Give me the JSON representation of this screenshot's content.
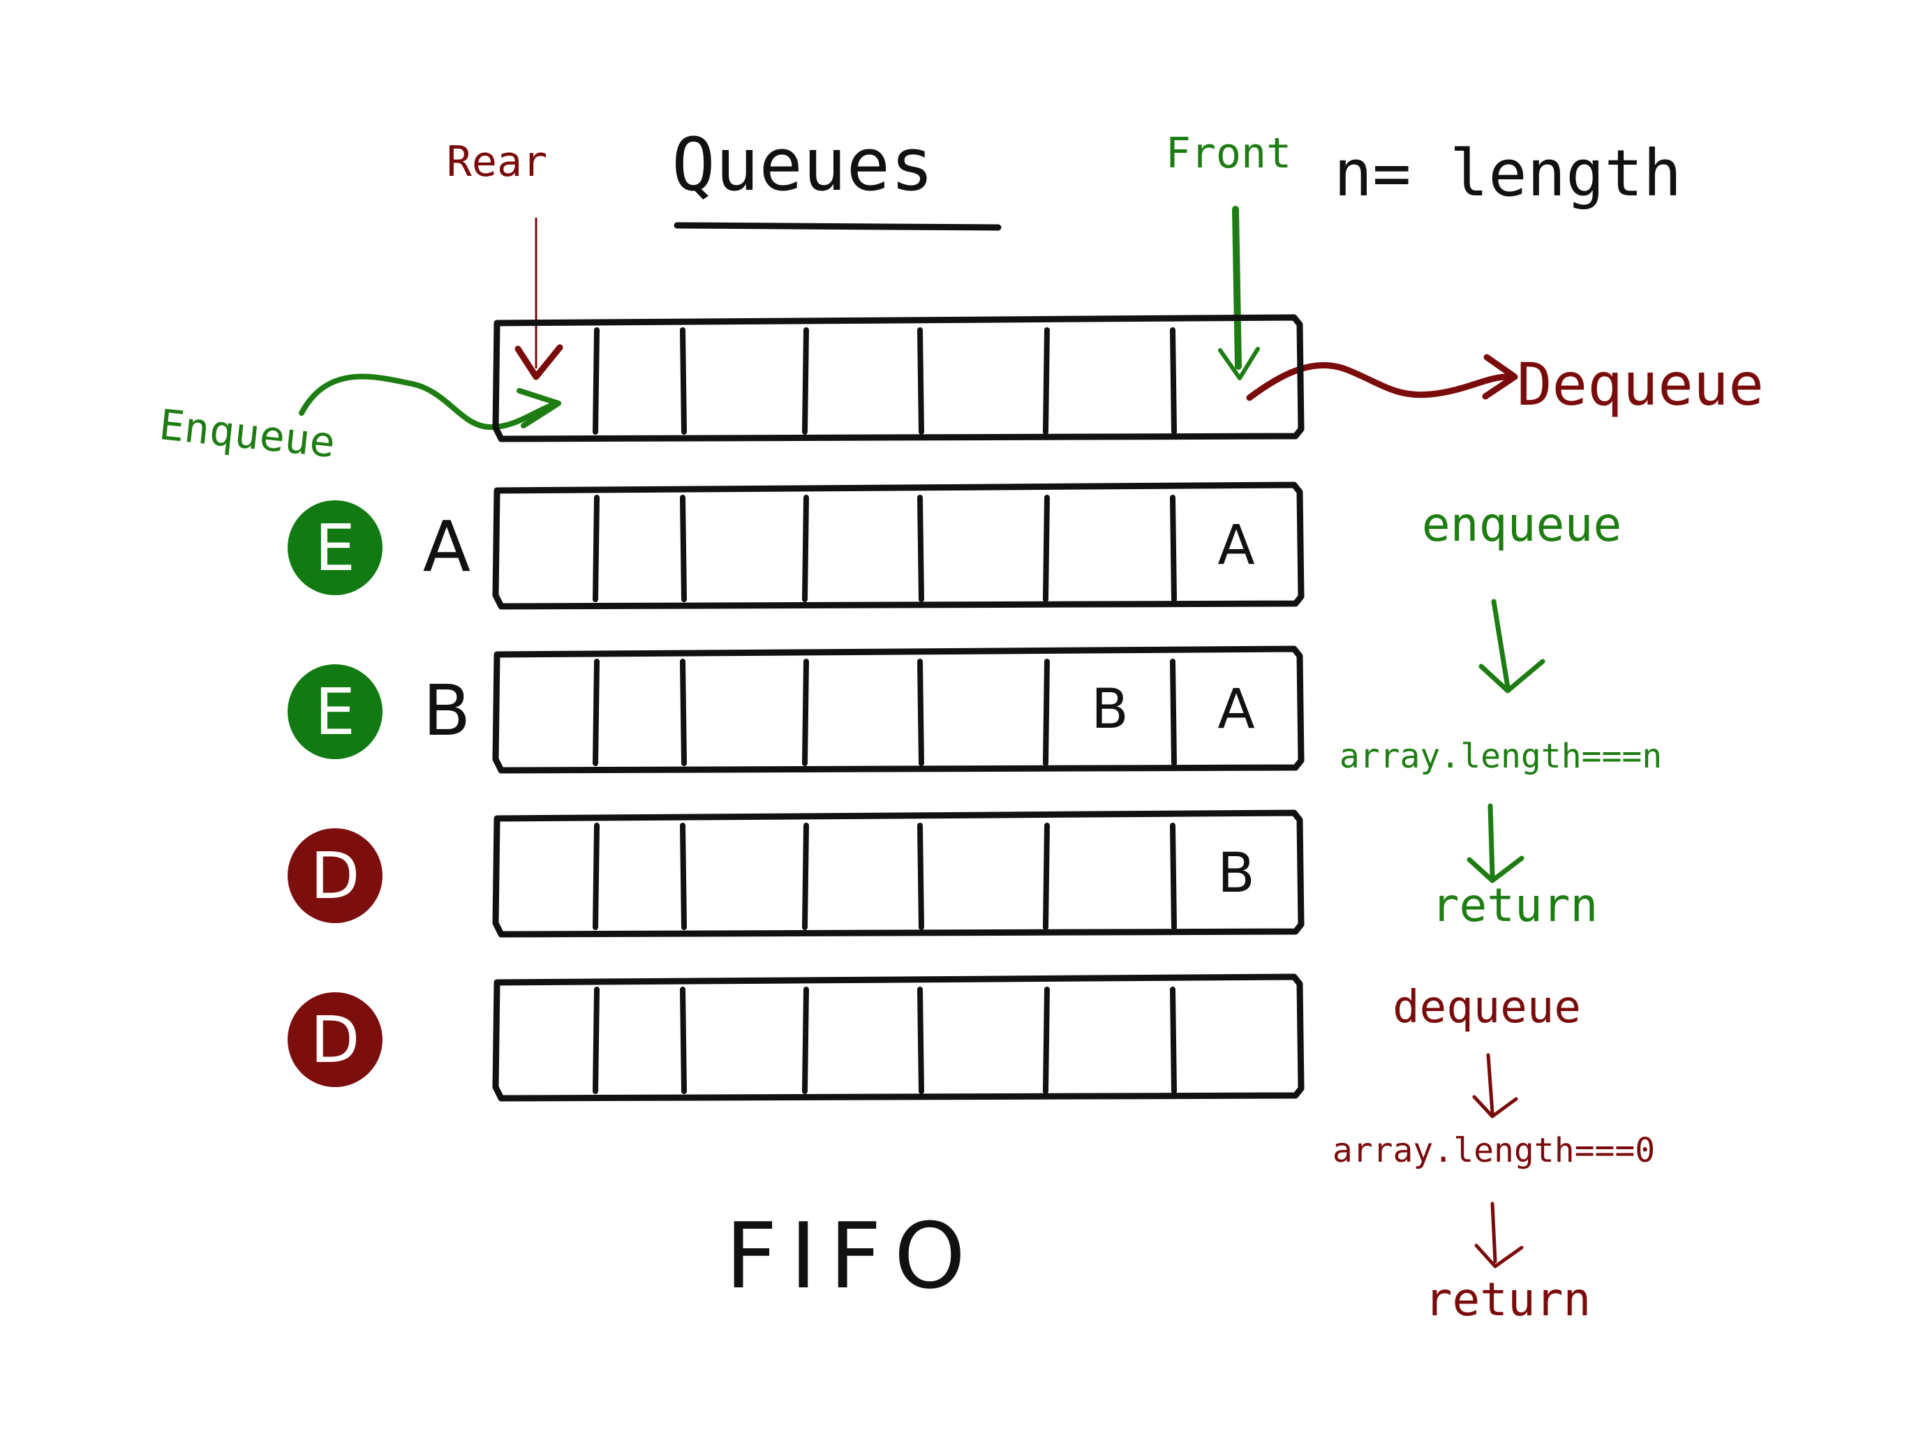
{
  "title": "Queues",
  "length_note": "n= length",
  "labels": {
    "rear": "Rear",
    "front": "Front",
    "enqueue": "Enqueue",
    "dequeue": "Dequeue",
    "fifo": "FIFO"
  },
  "colors": {
    "ink": "#111111",
    "green": "#1e7d12",
    "red": "#7a0b0b",
    "circle_green": "#127a12",
    "circle_red": "#7d0e0e"
  },
  "rows": [
    {
      "op": "",
      "input": "",
      "cells": [
        "",
        "",
        "",
        "",
        "",
        "",
        ""
      ]
    },
    {
      "op": "E",
      "input": "A",
      "cells": [
        "",
        "",
        "",
        "",
        "",
        "",
        "A"
      ]
    },
    {
      "op": "E",
      "input": "B",
      "cells": [
        "",
        "",
        "",
        "",
        "",
        "B",
        "A"
      ]
    },
    {
      "op": "D",
      "input": "",
      "cells": [
        "",
        "",
        "",
        "",
        "",
        "",
        "B"
      ]
    },
    {
      "op": "D",
      "input": "",
      "cells": [
        "",
        "",
        "",
        "",
        "",
        "",
        ""
      ]
    }
  ],
  "enqueue_flow": {
    "start": "enqueue",
    "check": "array.length===n",
    "end": "return"
  },
  "dequeue_flow": {
    "start": "dequeue",
    "check": "array.length===0",
    "end": "return"
  }
}
